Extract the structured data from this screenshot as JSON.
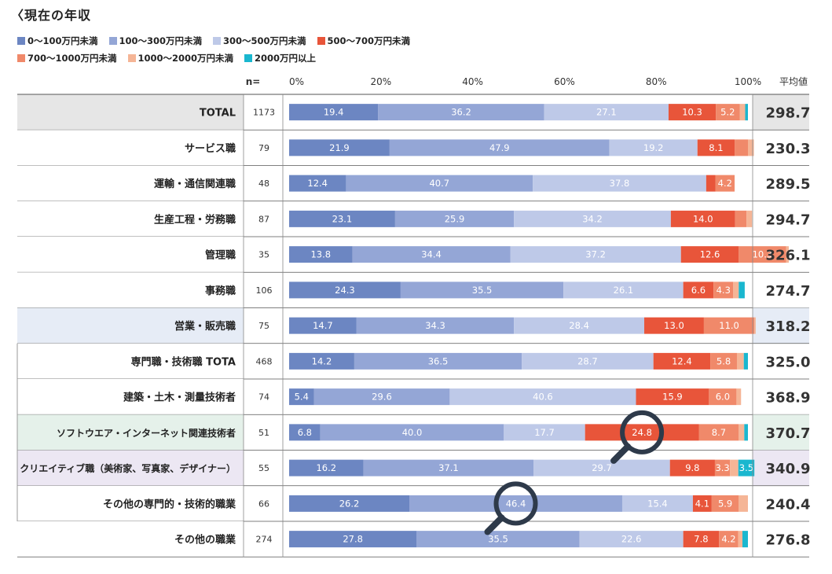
{
  "title": "〈現在の年収",
  "chart_data": {
    "type": "bar",
    "orientation": "horizontal",
    "stacked": true,
    "n_label": "n=",
    "avg_label": "平均値",
    "x_ticks": [
      "0%",
      "20%",
      "40%",
      "60%",
      "80%",
      "100%"
    ],
    "xlim": [
      0,
      100
    ],
    "legend": [
      {
        "name": "0～100万円未満",
        "color": "#6c86c2"
      },
      {
        "name": "100～300万円未満",
        "color": "#94a6d6"
      },
      {
        "name": "300～500万円未満",
        "color": "#bec9e8"
      },
      {
        "name": "500～700万円未満",
        "color": "#e8553a"
      },
      {
        "name": "700～1000万円未満",
        "color": "#f0896a"
      },
      {
        "name": "1000～2000万円未満",
        "color": "#f5b596"
      },
      {
        "name": "2000万円以上",
        "color": "#1ab7cf"
      }
    ],
    "rows": [
      {
        "label": "TOTAL",
        "n": "1173",
        "avg": "298.7",
        "bg": "#e6e6e6",
        "values": [
          19.4,
          36.2,
          27.1,
          10.3,
          5.2,
          1.2,
          0.6
        ],
        "labels": [
          "19.4",
          "36.2",
          "27.1",
          "10.3",
          "5.2",
          "",
          ""
        ]
      },
      {
        "label": "サービス職",
        "n": "79",
        "avg": "230.3",
        "bg": "#ffffff",
        "values": [
          21.9,
          47.9,
          19.2,
          8.1,
          2.9,
          1.3,
          0
        ],
        "labels": [
          "21.9",
          "47.9",
          "19.2",
          "8.1",
          "",
          "",
          ""
        ]
      },
      {
        "label": "運輸・通信関連職",
        "n": "48",
        "avg": "289.5",
        "bg": "#ffffff",
        "values": [
          12.4,
          40.7,
          37.8,
          2.0,
          4.2,
          0,
          0
        ],
        "labels": [
          "12.4",
          "40.7",
          "37.8",
          "",
          "4.2",
          "",
          ""
        ]
      },
      {
        "label": "生産工程・労務職",
        "n": "87",
        "avg": "294.7",
        "bg": "#ffffff",
        "values": [
          23.1,
          25.9,
          34.2,
          14.0,
          2.5,
          1.2,
          0
        ],
        "labels": [
          "23.1",
          "25.9",
          "34.2",
          "14.0",
          "",
          "",
          ""
        ]
      },
      {
        "label": "管理職",
        "n": "35",
        "avg": "326.1",
        "bg": "#ffffff",
        "values": [
          13.8,
          34.4,
          37.2,
          12.6,
          10.3,
          0.6,
          0
        ],
        "labels": [
          "13.8",
          "34.4",
          "37.2",
          "12.6",
          "10.3",
          "",
          ""
        ]
      },
      {
        "label": "事務職",
        "n": "106",
        "avg": "274.7",
        "bg": "#ffffff",
        "values": [
          24.3,
          35.5,
          26.1,
          6.6,
          4.3,
          1.2,
          1.3
        ],
        "labels": [
          "24.3",
          "35.5",
          "26.1",
          "6.6",
          "4.3",
          "",
          ""
        ]
      },
      {
        "label": "営業・販売職",
        "n": "75",
        "avg": "318.2",
        "bg": "#e6ecf6",
        "values": [
          14.7,
          34.3,
          28.4,
          13.0,
          11.0,
          0.3,
          0
        ],
        "labels": [
          "14.7",
          "34.3",
          "28.4",
          "13.0",
          "11.0",
          "",
          ""
        ]
      },
      {
        "label": "専門職・技術職 TOTA",
        "n": "468",
        "avg": "325.0",
        "bg": "#ffffff",
        "values": [
          14.2,
          36.5,
          28.7,
          12.4,
          5.8,
          1.5,
          0.9
        ],
        "labels": [
          "14.2",
          "36.5",
          "28.7",
          "12.4",
          "5.8",
          "",
          ""
        ]
      },
      {
        "label": "建築・土木・測量技術者",
        "n": "74",
        "avg": "368.9",
        "bg": "#ffffff",
        "values": [
          5.4,
          29.6,
          40.6,
          15.9,
          6.0,
          1.0,
          0
        ],
        "labels": [
          "5.4",
          "29.6",
          "40.6",
          "15.9",
          "6.0",
          "",
          ""
        ]
      },
      {
        "label": "ソフトウエア・インターネット関連技術者",
        "n": "51",
        "avg": "370.7",
        "bg": "#e5f1ea",
        "values": [
          6.8,
          40.0,
          17.7,
          24.8,
          8.7,
          1.2,
          0.8
        ],
        "labels": [
          "6.8",
          "40.0",
          "17.7",
          "24.8",
          "8.7",
          "",
          ""
        ]
      },
      {
        "label": "クリエイティブ職（美術家、写真家、デザイナー）",
        "n": "55",
        "avg": "340.9",
        "bg": "#ece7f3",
        "values": [
          16.2,
          37.1,
          29.7,
          9.8,
          3.3,
          1.8,
          3.5
        ],
        "labels": [
          "16.2",
          "37.1",
          "29.7",
          "9.8",
          "3.3",
          "",
          "3.5"
        ]
      },
      {
        "label": "その他の専門的・技術的職業",
        "n": "66",
        "avg": "240.4",
        "bg": "#ffffff",
        "values": [
          26.2,
          46.4,
          15.4,
          4.1,
          5.9,
          2.0,
          0
        ],
        "labels": [
          "26.2",
          "46.4",
          "15.4",
          "4.1",
          "5.9",
          "",
          ""
        ]
      },
      {
        "label": "その他の職業",
        "n": "274",
        "avg": "276.8",
        "bg": "#ffffff",
        "values": [
          27.8,
          35.5,
          22.6,
          7.8,
          4.2,
          0.9,
          1.2
        ],
        "labels": [
          "27.8",
          "35.5",
          "22.6",
          "7.8",
          "4.2",
          "",
          ""
        ]
      }
    ],
    "highlights": [
      {
        "row": 9,
        "segment": 3,
        "icon": "magnifier-icon"
      },
      {
        "row": 11,
        "segment": 1,
        "icon": "magnifier-icon"
      }
    ]
  }
}
